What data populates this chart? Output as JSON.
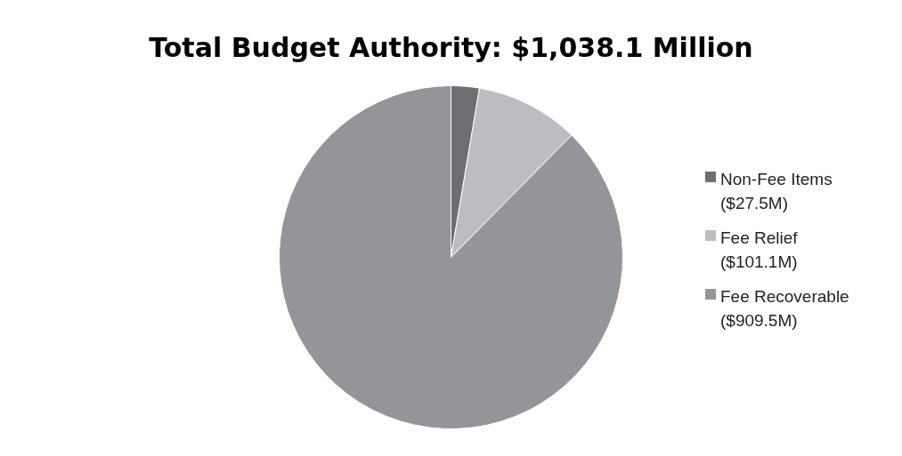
{
  "chart_data": {
    "type": "pie",
    "title": "Total Budget Authority: $1,038.1 Million",
    "categories": [
      "Non-Fee Items ($27.5M)",
      "Fee Relief ($101.1M)",
      "Fee Recoverable ($909.5M)"
    ],
    "values": [
      27.5,
      101.1,
      909.5
    ],
    "colors": [
      "#6d6e71",
      "#bcbdc0",
      "#939598"
    ],
    "legend": "right"
  }
}
